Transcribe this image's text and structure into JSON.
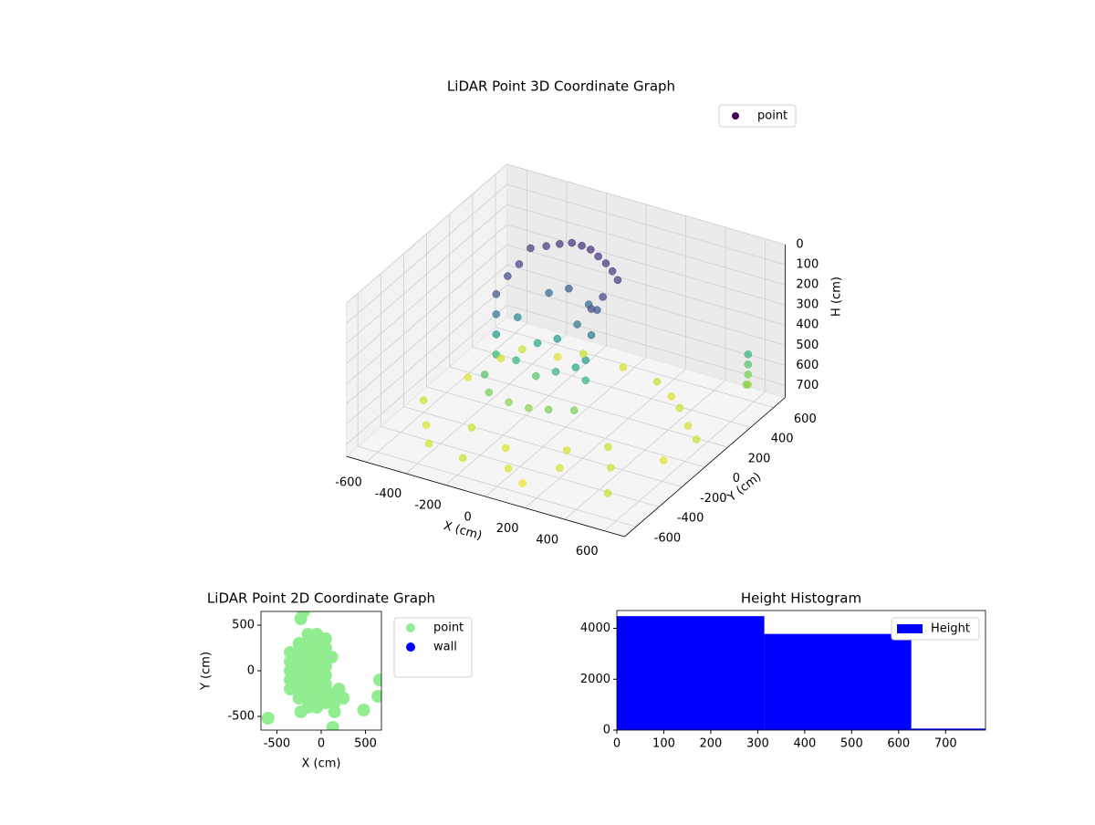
{
  "chart_data": [
    {
      "type": "scatter3d",
      "title": "LiDAR Point 3D Coordinate Graph",
      "xlabel": "X (cm)",
      "ylabel": "Y (cm)",
      "zlabel": "H (cm)",
      "xlim": [
        -700,
        700
      ],
      "ylim": [
        -700,
        700
      ],
      "zlim": [
        0,
        760
      ],
      "z_inverted": true,
      "xticks": [
        -600,
        -400,
        -200,
        0,
        200,
        400,
        600
      ],
      "yticks": [
        -600,
        -400,
        -200,
        0,
        200,
        400,
        600
      ],
      "zticks": [
        0,
        100,
        200,
        300,
        400,
        500,
        600,
        700
      ],
      "cmap": "viridis",
      "clim": [
        0,
        760
      ],
      "legend": "upper right",
      "series": [
        {
          "name": "point",
          "x": [
            -350,
            -300,
            -250,
            -200,
            -150,
            -100,
            -50,
            0,
            50,
            100,
            -350,
            -350,
            100,
            100,
            -350,
            -350,
            -350,
            -350,
            -350,
            -300,
            -200,
            -100,
            0,
            100,
            100,
            100,
            100,
            100,
            0,
            -100,
            -200,
            -300,
            -250,
            -150,
            -50,
            50,
            -200,
            -100,
            0,
            -600,
            -550,
            -500,
            -450,
            -300,
            -200,
            0,
            200,
            300,
            400,
            500,
            600,
            550,
            400,
            200,
            0,
            -200,
            -400,
            -500,
            300,
            150,
            -100,
            -300,
            100,
            500,
            600,
            600,
            600,
            600,
            620
          ],
          "y": [
            300,
            350,
            380,
            400,
            400,
            390,
            370,
            350,
            320,
            280,
            200,
            100,
            150,
            50,
            0,
            0,
            0,
            0,
            -100,
            -150,
            -150,
            -150,
            -150,
            -100,
            0,
            0,
            50,
            100,
            100,
            100,
            100,
            100,
            0,
            0,
            0,
            0,
            200,
            200,
            200,
            -200,
            100,
            300,
            400,
            450,
            500,
            500,
            450,
            400,
            300,
            200,
            100,
            -100,
            -300,
            -400,
            -500,
            -550,
            -500,
            -350,
            -150,
            -250,
            -350,
            -300,
            -550,
            -500,
            550,
            550,
            550,
            550,
            500
          ],
          "h": [
            120,
            120,
            110,
            100,
            100,
            100,
            110,
            120,
            130,
            140,
            150,
            160,
            160,
            170,
            200,
            300,
            400,
            500,
            550,
            600,
            620,
            620,
            600,
            600,
            500,
            400,
            300,
            200,
            300,
            400,
            450,
            350,
            500,
            550,
            500,
            450,
            250,
            200,
            250,
            700,
            720,
            710,
            700,
            720,
            700,
            710,
            700,
            720,
            700,
            710,
            700,
            720,
            700,
            710,
            720,
            700,
            710,
            720,
            700,
            710,
            720,
            700,
            740,
            700,
            500,
            550,
            600,
            650,
            620
          ]
        }
      ]
    },
    {
      "type": "scatter",
      "title": "LiDAR Point 2D Coordinate Graph",
      "xlabel": "X (cm)",
      "ylabel": "Y (cm)",
      "xlim": [
        -680,
        680
      ],
      "ylim": [
        -650,
        650
      ],
      "xticks": [
        -500,
        0,
        500
      ],
      "yticks": [
        -500,
        0,
        500
      ],
      "legend": "outside right",
      "series": [
        {
          "name": "point",
          "color": "#90ee90",
          "x": [
            -350,
            -350,
            -350,
            -350,
            -350,
            -250,
            -250,
            -250,
            -250,
            -250,
            -250,
            -250,
            -150,
            -150,
            -150,
            -150,
            -150,
            -150,
            -150,
            -150,
            -150,
            -50,
            -50,
            -50,
            -50,
            -50,
            -50,
            -50,
            -50,
            -50,
            50,
            50,
            50,
            50,
            50,
            50,
            50,
            50,
            150,
            150,
            150,
            250,
            200,
            -600,
            480,
            640,
            660,
            -230,
            -200,
            130,
            -230,
            120
          ],
          "y": [
            -200,
            -100,
            0,
            100,
            200,
            -300,
            -200,
            -100,
            0,
            100,
            200,
            300,
            -400,
            -300,
            -200,
            -100,
            0,
            100,
            200,
            300,
            400,
            -400,
            -300,
            -200,
            -100,
            0,
            100,
            200,
            300,
            400,
            -350,
            -250,
            -150,
            -50,
            50,
            150,
            250,
            350,
            -250,
            -350,
            -450,
            -300,
            -200,
            -520,
            -430,
            -280,
            -100,
            570,
            650,
            -620,
            -450,
            150
          ]
        },
        {
          "name": "wall",
          "color": "#0000ff",
          "x": [],
          "y": []
        }
      ]
    },
    {
      "type": "histogram",
      "title": "Height Histogram",
      "xlim": [
        0,
        785
      ],
      "ylim": [
        0,
        4700
      ],
      "xticks": [
        0,
        100,
        200,
        300,
        400,
        500,
        600,
        700
      ],
      "yticks": [
        0,
        2000,
        4000
      ],
      "legend": "upper right",
      "bins": [
        0,
        314,
        627,
        785
      ],
      "series": [
        {
          "name": "Height",
          "color": "#0000ff",
          "values": [
            4480,
            3780,
            60
          ]
        }
      ]
    }
  ]
}
